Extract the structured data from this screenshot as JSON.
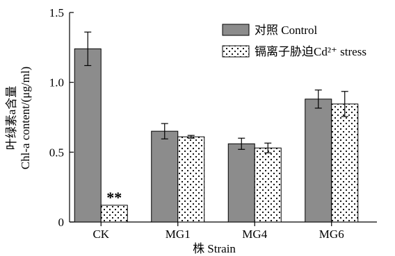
{
  "chart_data": {
    "type": "bar",
    "categories": [
      "CK",
      "MG1",
      "MG4",
      "MG6"
    ],
    "series": [
      {
        "name": "对照 Control",
        "values": [
          1.24,
          0.65,
          0.56,
          0.88
        ],
        "errors": [
          0.12,
          0.055,
          0.04,
          0.065
        ],
        "color": "#8c8c8c",
        "pattern": "solid-gray"
      },
      {
        "name": "镉离子胁迫Cd²⁺ stress",
        "values": [
          0.12,
          0.61,
          0.53,
          0.845
        ],
        "errors": [
          0.0,
          0.01,
          0.035,
          0.09
        ],
        "color": "#ffffff",
        "pattern": "dotted"
      }
    ],
    "ylim": [
      0,
      1.5
    ],
    "yticks": [
      "0",
      "0.5",
      "1.0",
      "1.5"
    ],
    "ytick_values": [
      0,
      0.5,
      1.0,
      1.5
    ],
    "ylabel_line1": "叶绿素a含量",
    "ylabel_line2": "Chl-a content/(μg/ml)",
    "xlabel": "株 Strain",
    "annotation": {
      "text": "**",
      "category": "CK",
      "series": 1
    },
    "legend_position": "top-right",
    "grid": false
  }
}
